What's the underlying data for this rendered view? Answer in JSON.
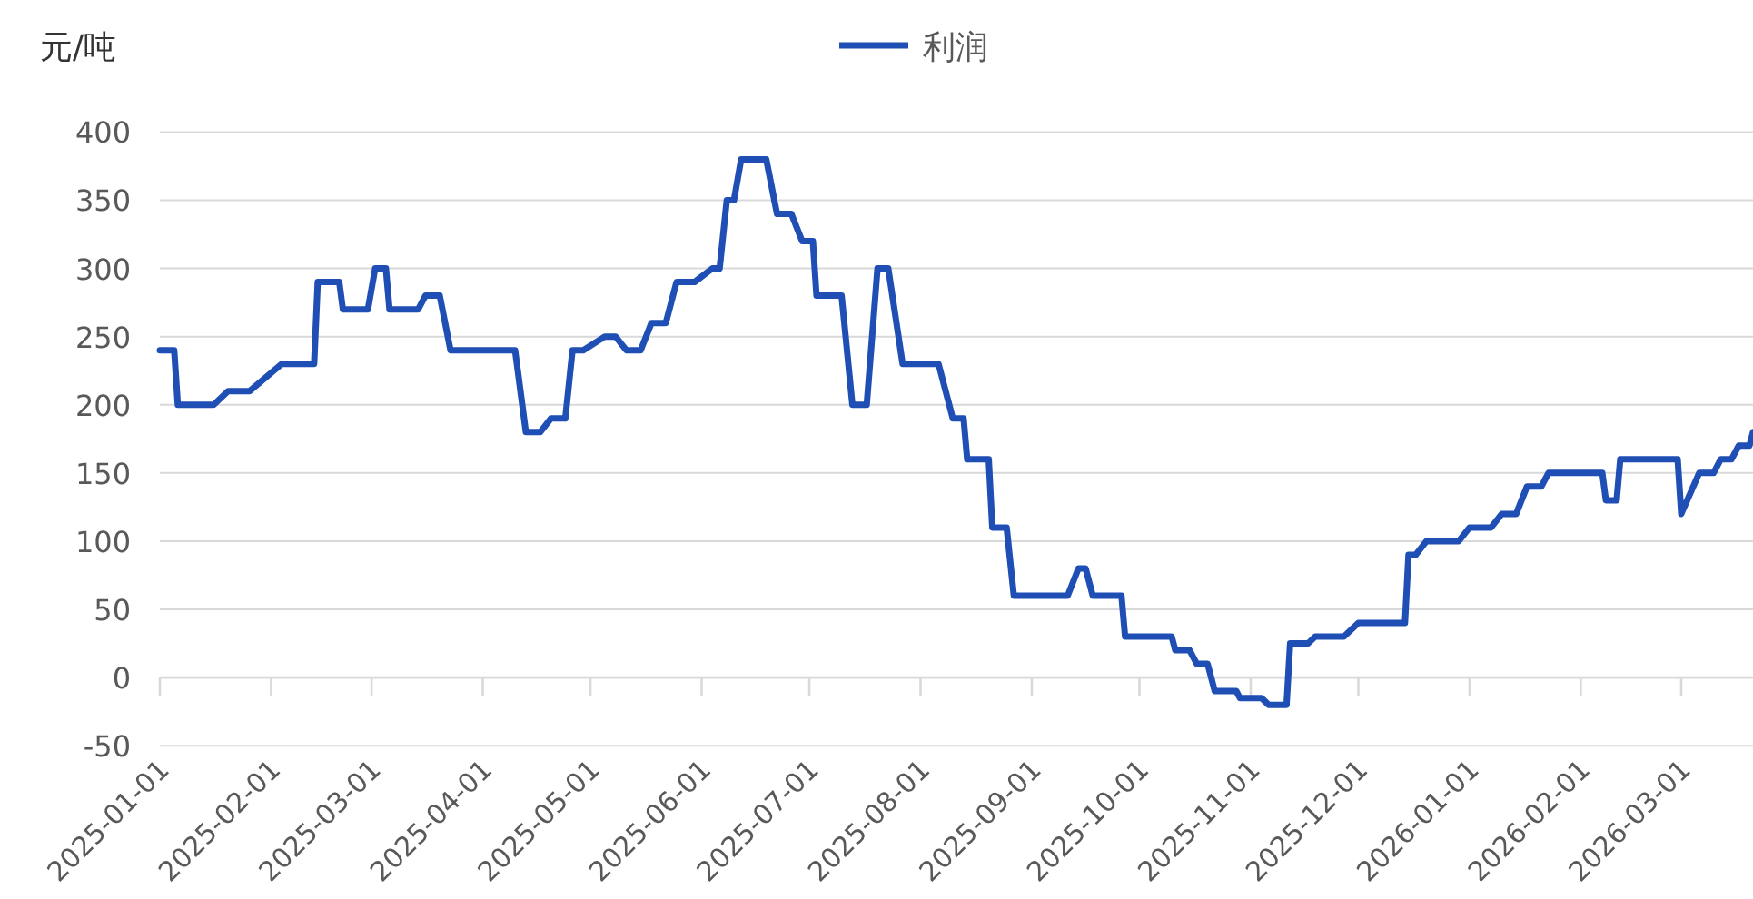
{
  "chart_data": {
    "type": "line",
    "ylabel": "元/吨",
    "legend": "top",
    "grid": "y",
    "xlim": [
      "2025-01-01",
      "2026-03-21"
    ],
    "xticks": [
      "2025-01-01",
      "2025-02-01",
      "2025-03-01",
      "2025-04-01",
      "2025-05-01",
      "2025-06-01",
      "2025-07-01",
      "2025-08-01",
      "2025-09-01",
      "2025-10-01",
      "2025-11-01",
      "2025-12-01",
      "2026-01-01",
      "2026-02-01",
      "2026-03-01"
    ],
    "ylim": [
      -50,
      400
    ],
    "yticks": [
      -50,
      0,
      50,
      100,
      150,
      200,
      250,
      300,
      350,
      400
    ],
    "x": [
      "2025-01-01",
      "2025-01-05",
      "2025-01-06",
      "2025-01-16",
      "2025-01-20",
      "2025-01-26",
      "2025-02-04",
      "2025-02-13",
      "2025-02-14",
      "2025-02-20",
      "2025-02-21",
      "2025-02-28",
      "2025-03-02",
      "2025-03-05",
      "2025-03-06",
      "2025-03-14",
      "2025-03-16",
      "2025-03-20",
      "2025-03-23",
      "2025-04-10",
      "2025-04-13",
      "2025-04-17",
      "2025-04-20",
      "2025-04-24",
      "2025-04-26",
      "2025-04-29",
      "2025-05-05",
      "2025-05-08",
      "2025-05-11",
      "2025-05-15",
      "2025-05-18",
      "2025-05-22",
      "2025-05-25",
      "2025-05-30",
      "2025-06-04",
      "2025-06-06",
      "2025-06-08",
      "2025-06-10",
      "2025-06-12",
      "2025-06-19",
      "2025-06-22",
      "2025-06-26",
      "2025-06-29",
      "2025-07-02",
      "2025-07-03",
      "2025-07-10",
      "2025-07-13",
      "2025-07-17",
      "2025-07-20",
      "2025-07-23",
      "2025-07-27",
      "2025-08-06",
      "2025-08-10",
      "2025-08-13",
      "2025-08-14",
      "2025-08-20",
      "2025-08-21",
      "2025-08-25",
      "2025-08-27",
      "2025-09-11",
      "2025-09-14",
      "2025-09-16",
      "2025-09-18",
      "2025-09-26",
      "2025-09-27",
      "2025-10-10",
      "2025-10-11",
      "2025-10-15",
      "2025-10-17",
      "2025-10-20",
      "2025-10-22",
      "2025-10-28",
      "2025-10-29",
      "2025-11-04",
      "2025-11-06",
      "2025-11-11",
      "2025-11-12",
      "2025-11-17",
      "2025-11-19",
      "2025-11-27",
      "2025-12-01",
      "2025-12-14",
      "2025-12-15",
      "2025-12-17",
      "2025-12-20",
      "2025-12-29",
      "2026-01-01",
      "2026-01-07",
      "2026-01-10",
      "2026-01-14",
      "2026-01-17",
      "2026-01-21",
      "2026-01-23",
      "2026-02-07",
      "2026-02-08",
      "2026-02-11",
      "2026-02-12",
      "2026-02-28",
      "2026-03-01",
      "2026-03-06",
      "2026-03-10",
      "2026-03-12",
      "2026-03-15",
      "2026-03-17",
      "2026-03-20",
      "2026-03-21"
    ],
    "series": [
      {
        "name": "利润",
        "color": "#1f4fb4",
        "values": [
          240,
          240,
          200,
          200,
          210,
          210,
          230,
          230,
          290,
          290,
          270,
          270,
          300,
          300,
          270,
          270,
          280,
          280,
          240,
          240,
          180,
          180,
          190,
          190,
          240,
          240,
          250,
          250,
          240,
          240,
          260,
          260,
          290,
          290,
          300,
          300,
          350,
          350,
          380,
          380,
          340,
          340,
          320,
          320,
          280,
          280,
          200,
          200,
          300,
          300,
          230,
          230,
          190,
          190,
          160,
          160,
          110,
          110,
          60,
          60,
          80,
          80,
          60,
          60,
          30,
          30,
          20,
          20,
          10,
          10,
          -10,
          -10,
          -15,
          -15,
          -20,
          -20,
          25,
          25,
          30,
          30,
          40,
          40,
          90,
          90,
          100,
          100,
          110,
          110,
          120,
          120,
          140,
          140,
          150,
          150,
          130,
          130,
          160,
          160,
          120,
          150,
          150,
          160,
          160,
          170,
          170,
          180
        ]
      }
    ]
  }
}
